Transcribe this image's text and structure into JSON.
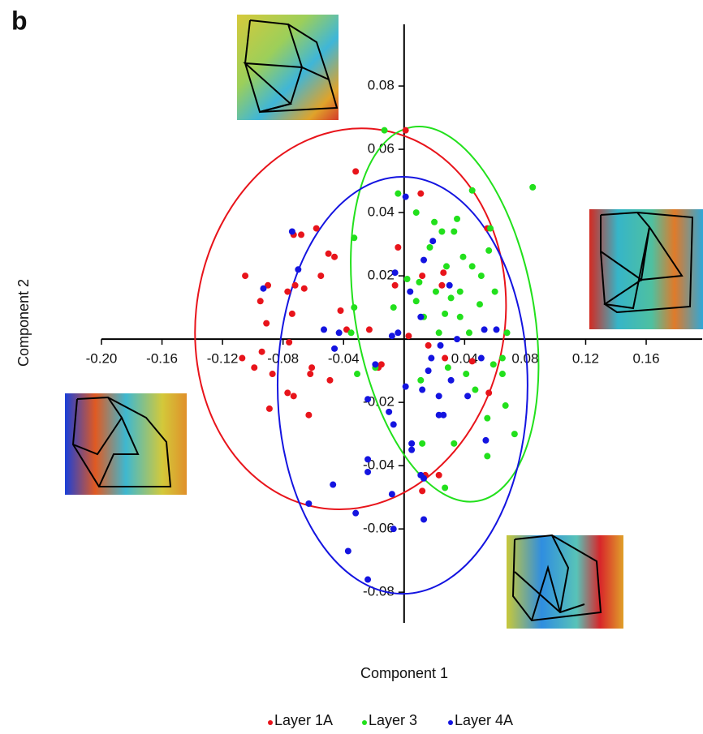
{
  "chart_data": {
    "type": "scatter",
    "panel_label": "b",
    "x_label": "Component 1",
    "y_label": "Component 2",
    "xlim": [
      -0.2,
      0.197
    ],
    "ylim": [
      -0.0897,
      0.0995
    ],
    "xticks": [
      {
        "value": -0.2,
        "label": "-0.20"
      },
      {
        "value": -0.16,
        "label": "-0.16"
      },
      {
        "value": -0.12,
        "label": "-0.12"
      },
      {
        "value": -0.08,
        "label": "-0.08"
      },
      {
        "value": -0.04,
        "label": "-0.04"
      },
      {
        "value": 0.04,
        "label": "0.04"
      },
      {
        "value": 0.08,
        "label": "0.08"
      },
      {
        "value": 0.12,
        "label": "0.12"
      },
      {
        "value": 0.16,
        "label": "0.16"
      }
    ],
    "yticks": [
      {
        "value": -0.08,
        "label": "-0.08"
      },
      {
        "value": -0.06,
        "label": "-0.06"
      },
      {
        "value": -0.04,
        "label": "-0.04"
      },
      {
        "value": -0.02,
        "label": "-0.02"
      },
      {
        "value": 0.02,
        "label": "0.02"
      },
      {
        "value": 0.04,
        "label": "0.04"
      },
      {
        "value": 0.06,
        "label": "0.06"
      },
      {
        "value": 0.08,
        "label": "0.08"
      }
    ],
    "series": [
      {
        "name": "Layer 1A",
        "color": "#e8141b",
        "x": [
          0.001,
          -0.032,
          0.011,
          -0.073,
          -0.068,
          -0.058,
          -0.05,
          -0.046,
          -0.105,
          -0.072,
          -0.066,
          -0.09,
          -0.077,
          -0.095,
          -0.091,
          -0.055,
          -0.042,
          -0.038,
          -0.074,
          -0.076,
          -0.094,
          -0.107,
          -0.099,
          -0.087,
          -0.089,
          -0.077,
          -0.061,
          -0.062,
          -0.063,
          -0.073,
          -0.049,
          -0.023,
          -0.015,
          -0.004,
          -0.006,
          0.012,
          0.026,
          0.025,
          0.055,
          0.056,
          0.045,
          0.027,
          0.016,
          0.014,
          0.012,
          0.023,
          0.003,
          -0.017
        ],
        "values": [
          0.066,
          0.053,
          0.046,
          0.033,
          0.033,
          0.035,
          0.027,
          0.026,
          0.02,
          0.017,
          0.016,
          0.017,
          0.015,
          0.012,
          0.005,
          0.02,
          0.009,
          0.003,
          0.008,
          -0.001,
          -0.004,
          -0.006,
          -0.009,
          -0.011,
          -0.022,
          -0.017,
          -0.009,
          -0.011,
          -0.024,
          -0.018,
          -0.013,
          0.003,
          -0.008,
          0.029,
          0.017,
          0.02,
          0.021,
          0.017,
          0.035,
          -0.017,
          -0.007,
          -0.006,
          -0.002,
          -0.043,
          -0.048,
          -0.043,
          0.001,
          -0.009
        ],
        "ellipse": {
          "cx": -0.0354,
          "cy": 0.0064,
          "rx": 0.102,
          "ry": 0.0605,
          "angle": 9.6
        }
      },
      {
        "name": "Layer 3",
        "color": "#22e01c",
        "x": [
          -0.013,
          0.085,
          0.045,
          -0.004,
          0.008,
          0.02,
          0.025,
          0.035,
          0.033,
          -0.033,
          0.057,
          0.056,
          0.017,
          0.039,
          0.045,
          0.028,
          0.051,
          0.002,
          0.01,
          0.037,
          0.021,
          0.06,
          0.008,
          0.031,
          0.05,
          -0.007,
          0.013,
          0.027,
          0.037,
          -0.033,
          -0.035,
          0.043,
          0.023,
          0.068,
          0.065,
          0.059,
          0.041,
          0.065,
          0.029,
          0.011,
          0.047,
          0.067,
          0.055,
          0.073,
          0.033,
          0.055,
          0.027,
          0.012,
          -0.019,
          -0.031
        ],
        "values": [
          0.066,
          0.048,
          0.047,
          0.046,
          0.04,
          0.037,
          0.034,
          0.038,
          0.034,
          0.032,
          0.035,
          0.028,
          0.029,
          0.026,
          0.023,
          0.023,
          0.02,
          0.019,
          0.018,
          0.015,
          0.015,
          0.015,
          0.012,
          0.013,
          0.011,
          0.01,
          0.007,
          0.008,
          0.007,
          0.01,
          0.002,
          0.002,
          0.002,
          0.002,
          -0.006,
          -0.008,
          -0.011,
          -0.011,
          -0.009,
          -0.013,
          -0.016,
          -0.021,
          -0.025,
          -0.03,
          -0.033,
          -0.037,
          -0.047,
          -0.033,
          -0.009,
          -0.011
        ],
        "ellipse": {
          "cx": 0.0268,
          "cy": 0.0079,
          "rx": 0.059,
          "ry": 0.06,
          "angle": -10
        }
      },
      {
        "name": "Layer 4A",
        "color": "#1414e0",
        "x": [
          0.001,
          0.019,
          -0.074,
          -0.07,
          -0.093,
          -0.006,
          0.004,
          0.013,
          0.03,
          -0.053,
          -0.043,
          -0.008,
          -0.004,
          0.011,
          0.024,
          0.035,
          0.053,
          0.061,
          0.051,
          0.018,
          0.016,
          0.012,
          0.001,
          0.031,
          0.023,
          0.042,
          -0.046,
          -0.024,
          -0.01,
          -0.007,
          0.005,
          0.005,
          0.023,
          0.026,
          0.054,
          -0.024,
          -0.024,
          -0.047,
          0.011,
          0.013,
          -0.063,
          -0.008,
          -0.032,
          0.013,
          -0.007,
          -0.037,
          -0.024,
          -0.019
        ],
        "values": [
          0.045,
          0.031,
          0.034,
          0.022,
          0.016,
          0.021,
          0.015,
          0.025,
          0.017,
          0.003,
          0.002,
          0.001,
          0.002,
          0.007,
          -0.002,
          0,
          0.003,
          0.003,
          -0.006,
          -0.006,
          -0.01,
          -0.016,
          -0.015,
          -0.013,
          -0.018,
          -0.018,
          -0.003,
          -0.019,
          -0.023,
          -0.027,
          -0.033,
          -0.035,
          -0.024,
          -0.024,
          -0.032,
          -0.038,
          -0.042,
          -0.046,
          -0.043,
          -0.044,
          -0.052,
          -0.049,
          -0.055,
          -0.057,
          -0.06,
          -0.067,
          -0.076,
          -0.008
        ],
        "ellipse": {
          "cx": -0.001,
          "cy": -0.0146,
          "rx": 0.0826,
          "ry": 0.0659,
          "angle": 0
        }
      }
    ]
  }
}
